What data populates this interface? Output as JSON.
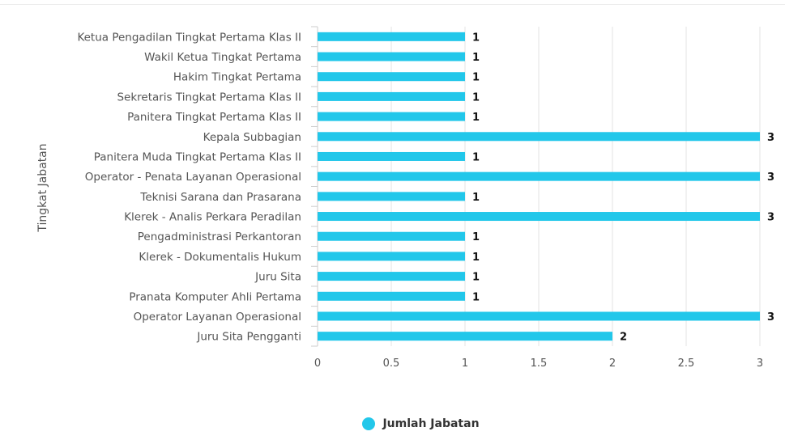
{
  "chart_data": {
    "type": "bar",
    "orientation": "horizontal",
    "ylabel": "Tingkat Jabatan",
    "xlim": [
      0,
      3
    ],
    "x_ticks": [
      "0",
      "0.5",
      "1",
      "1.5",
      "2",
      "2.5",
      "3"
    ],
    "grid": true,
    "legend_position": "bottom-center",
    "categories": [
      "Ketua Pengadilan Tingkat Pertama Klas II",
      "Wakil Ketua Tingkat Pertama",
      "Hakim Tingkat Pertama",
      "Sekretaris Tingkat Pertama Klas II",
      "Panitera Tingkat Pertama Klas II",
      "Kepala Subbagian",
      "Panitera Muda Tingkat Pertama Klas II",
      "Operator - Penata Layanan Operasional",
      "Teknisi Sarana dan Prasarana",
      "Klerek - Analis Perkara Peradilan",
      "Pengadministrasi Perkantoran",
      "Klerek - Dokumentalis Hukum",
      "Juru Sita",
      "Pranata Komputer Ahli Pertama",
      "Operator Layanan Operasional",
      "Juru Sita Pengganti"
    ],
    "series": [
      {
        "name": "Jumlah Jabatan",
        "color": "#22c7ea",
        "values": [
          1,
          1,
          1,
          1,
          1,
          3,
          1,
          3,
          1,
          3,
          1,
          1,
          1,
          1,
          3,
          2
        ],
        "data_labels": [
          "1",
          "1",
          "1",
          "1",
          "1",
          "3",
          "1",
          "3",
          "1",
          "3",
          "1",
          "1",
          "1",
          "1",
          "3",
          "2"
        ]
      }
    ]
  }
}
